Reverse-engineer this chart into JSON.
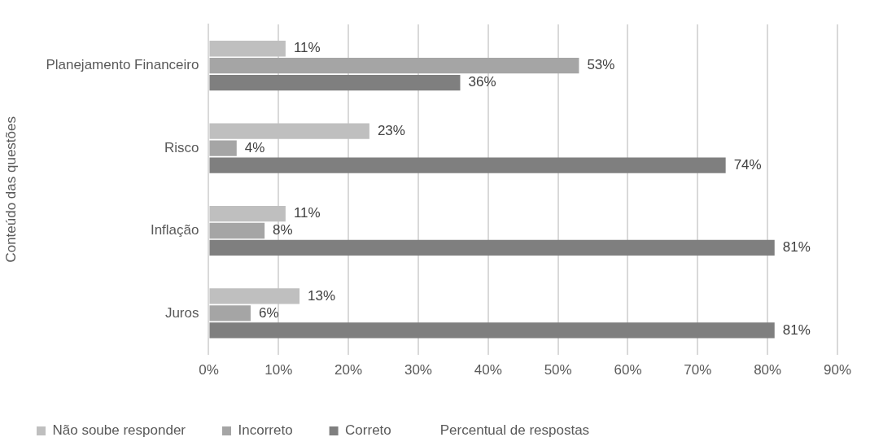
{
  "chart_data": {
    "type": "bar",
    "orientation": "horizontal",
    "ylabel": "Conteúdo das questões",
    "xlabel": "Percentual de respostas",
    "categories": [
      "Planejamento Financeiro",
      "Risco",
      "Inflação",
      "Juros"
    ],
    "series": [
      {
        "name": "Não soube responder",
        "color": "#bfbfbf",
        "values": [
          11,
          23,
          11,
          13
        ],
        "value_labels": [
          "11%",
          "23%",
          "11%",
          "13%"
        ]
      },
      {
        "name": "Incorreto",
        "color": "#a5a5a5",
        "values": [
          53,
          4,
          8,
          6
        ],
        "value_labels": [
          "53%",
          "4%",
          "8%",
          "6%"
        ]
      },
      {
        "name": "Correto",
        "color": "#7f7f7f",
        "values": [
          36,
          74,
          81,
          81
        ],
        "value_labels": [
          "36%",
          "74%",
          "81%",
          "81%"
        ]
      }
    ],
    "xlim": [
      0,
      90
    ],
    "xticks": [
      {
        "value": 0,
        "label": "0%"
      },
      {
        "value": 10,
        "label": "10%"
      },
      {
        "value": 20,
        "label": "20%"
      },
      {
        "value": 30,
        "label": "30%"
      },
      {
        "value": 40,
        "label": "40%"
      },
      {
        "value": 50,
        "label": "50%"
      },
      {
        "value": 60,
        "label": "60%"
      },
      {
        "value": 70,
        "label": "70%"
      },
      {
        "value": 80,
        "label": "80%"
      },
      {
        "value": 90,
        "label": "90%"
      }
    ],
    "grid": "x",
    "legend": "bottom left"
  }
}
